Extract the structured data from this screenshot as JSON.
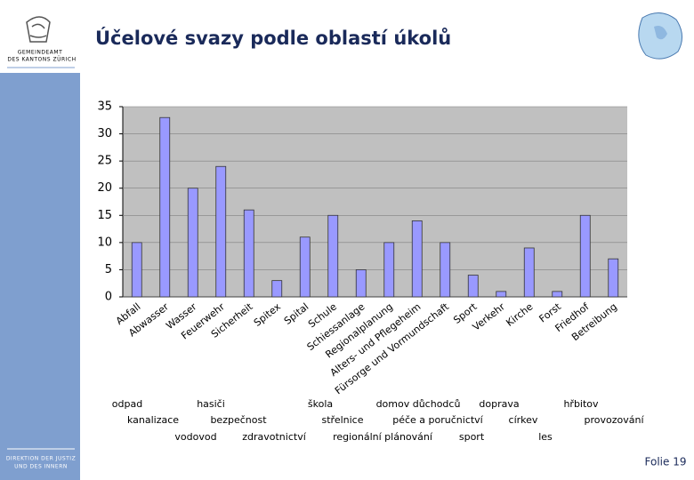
{
  "header": {
    "title": "Účelové svazy podle oblastí úkolů",
    "org_line1": "GEMEINDEAMT",
    "org_line2": "DES KANTONS ZÜRICH"
  },
  "sidebar": {
    "line1": "DIREKTION DER JUSTIZ",
    "line2": "UND DES INNERN"
  },
  "footer": {
    "slide": "Folie 19"
  },
  "chart_data": {
    "type": "bar",
    "categories": [
      "Abfall",
      "Abwasser",
      "Wasser",
      "Feuerwehr",
      "Sicherheit",
      "Spitex",
      "Spital",
      "Schule",
      "Schiessanlage",
      "Regionalplanung",
      "Alters- und Pflegeheim",
      "Fürsorge und Vormundschaft",
      "Sport",
      "Verkehr",
      "Kirche",
      "Forst",
      "Friedhof",
      "Betreibung"
    ],
    "values": [
      10,
      33,
      20,
      24,
      16,
      3,
      11,
      15,
      5,
      10,
      14,
      10,
      4,
      1,
      9,
      1,
      15,
      7
    ],
    "color": "#9999ff",
    "ylim": [
      0,
      35
    ],
    "yticks": [
      0,
      5,
      10,
      15,
      20,
      25,
      30,
      35
    ],
    "grid": true
  },
  "translations": [
    "odpad",
    "hasiči",
    "škola",
    "domov důchodců",
    "doprava",
    "hřbitov",
    "kanalizace",
    "bezpečnost",
    "střelnice",
    "péče a poručnictví",
    "církev",
    "provozování",
    "vodovod",
    "zdravotnictví",
    "regionální plánování",
    "sport",
    "les"
  ]
}
